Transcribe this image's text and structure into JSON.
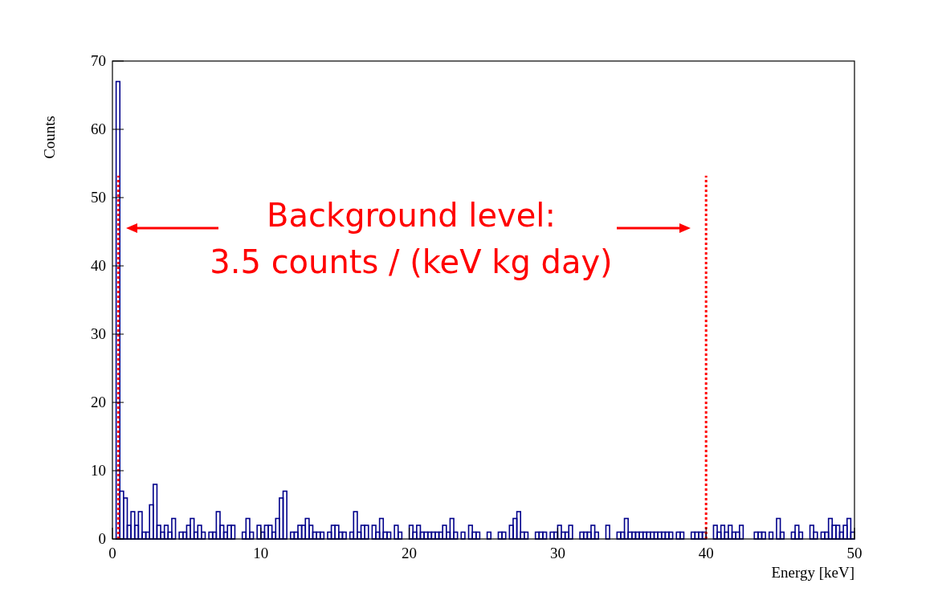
{
  "chart_data": {
    "type": "histogram",
    "xlabel": "Energy [keV]",
    "ylabel": "Counts",
    "color": "#00008b",
    "bins": [
      0,
      0.25,
      0.5,
      0.75,
      1,
      1.25,
      1.5,
      1.75,
      2,
      2.25,
      2.5,
      2.75,
      3,
      3.25,
      3.5,
      3.75,
      4,
      4.25,
      4.5,
      4.75,
      5,
      5.25,
      5.5,
      5.75,
      6,
      6.25,
      6.5,
      6.75,
      7,
      7.25,
      7.5,
      7.75,
      8,
      8.25,
      8.5,
      8.75,
      9,
      9.25,
      9.5,
      9.75,
      10,
      10.25,
      10.5,
      10.75,
      11,
      11.25,
      11.5,
      11.75,
      12,
      12.25,
      12.5,
      12.75,
      13,
      13.25,
      13.5,
      13.75,
      14,
      14.25,
      14.5,
      14.75,
      15,
      15.25,
      15.5,
      15.75,
      16,
      16.25,
      16.5,
      16.75,
      17,
      17.25,
      17.5,
      17.75,
      18,
      18.25,
      18.5,
      18.75,
      19,
      19.25,
      19.5,
      19.75,
      20,
      20.25,
      20.5,
      20.75,
      21,
      21.25,
      21.5,
      21.75,
      22,
      22.25,
      22.5,
      22.75,
      23,
      23.25,
      23.5,
      23.75,
      24,
      24.25,
      24.5,
      24.75,
      25,
      25.25,
      25.5,
      25.75,
      26,
      26.25,
      26.5,
      26.75,
      27,
      27.25,
      27.5,
      27.75,
      28,
      28.25,
      28.5,
      28.75,
      29,
      29.25,
      29.5,
      29.75,
      30,
      30.25,
      30.5,
      30.75,
      31,
      31.25,
      31.5,
      31.75,
      32,
      32.25,
      32.5,
      32.75,
      33,
      33.25,
      33.5,
      33.75,
      34,
      34.25,
      34.5,
      34.75,
      35,
      35.25,
      35.5,
      35.75,
      36,
      36.25,
      36.5,
      36.75,
      37,
      37.25,
      37.5,
      37.75,
      38,
      38.25,
      38.5,
      38.75,
      39,
      39.25,
      39.5,
      39.75,
      40,
      40.25,
      40.5,
      40.75,
      41,
      41.25,
      41.5,
      41.75,
      42,
      42.25,
      42.5,
      42.75,
      43,
      43.25,
      43.5,
      43.75,
      44,
      44.25,
      44.5,
      44.75,
      45,
      45.25,
      45.5,
      45.75,
      46,
      46.25,
      46.5,
      46.75,
      47,
      47.25,
      47.5,
      47.75,
      48,
      48.25,
      48.5,
      48.75,
      49,
      49.25,
      49.5,
      49.75,
      50
    ],
    "values": [
      0,
      67,
      7,
      6,
      2,
      4,
      2,
      4,
      1,
      1,
      5,
      8,
      2,
      1,
      2,
      1,
      3,
      0,
      1,
      1,
      2,
      3,
      1,
      2,
      1,
      0,
      1,
      1,
      4,
      2,
      1,
      2,
      2,
      0,
      0,
      1,
      3,
      1,
      0,
      2,
      1,
      2,
      2,
      1,
      3,
      6,
      7,
      0,
      1,
      1,
      2,
      2,
      3,
      2,
      1,
      1,
      1,
      0,
      1,
      2,
      2,
      1,
      1,
      0,
      1,
      4,
      1,
      2,
      2,
      0,
      2,
      1,
      3,
      1,
      1,
      0,
      2,
      1,
      0,
      0,
      2,
      1,
      2,
      1,
      1,
      1,
      1,
      1,
      1,
      2,
      1,
      3,
      1,
      0,
      1,
      0,
      2,
      1,
      1,
      0,
      0,
      1,
      0,
      0,
      1,
      1,
      0,
      2,
      3,
      4,
      1,
      1,
      0,
      0,
      1,
      1,
      1,
      0,
      1,
      1,
      2,
      1,
      1,
      2,
      0,
      0,
      1,
      1,
      1,
      2,
      1,
      0,
      0,
      2,
      0,
      0,
      1,
      1,
      3,
      1,
      1,
      1,
      1,
      1,
      1,
      1,
      1,
      1,
      1,
      1,
      1,
      0,
      1,
      1,
      0,
      0,
      1,
      1,
      1,
      1,
      0,
      0,
      2,
      1,
      2,
      1,
      2,
      1,
      1,
      2,
      0,
      0,
      0,
      1,
      1,
      1,
      0,
      1,
      0,
      3,
      1,
      0,
      0,
      1,
      2,
      1,
      0,
      0,
      2,
      1,
      0,
      1,
      1,
      3,
      2,
      2,
      1,
      2,
      3,
      1
    ],
    "xlim": [
      0,
      50
    ],
    "ylim": [
      0,
      70
    ],
    "xticks": [
      0,
      10,
      20,
      30,
      40,
      50
    ],
    "yticks": [
      0,
      10,
      20,
      30,
      40,
      50,
      60,
      70
    ],
    "ref_lines": [
      {
        "axis": "x",
        "value": 0.4,
        "color": "#ff0000",
        "line_style": "dotted"
      },
      {
        "axis": "x",
        "value": 40,
        "color": "#ff0000",
        "line_style": "dotted"
      }
    ],
    "annotations": [
      "Background level:",
      "3.5 counts / (keV kg day)"
    ],
    "grid": false
  }
}
